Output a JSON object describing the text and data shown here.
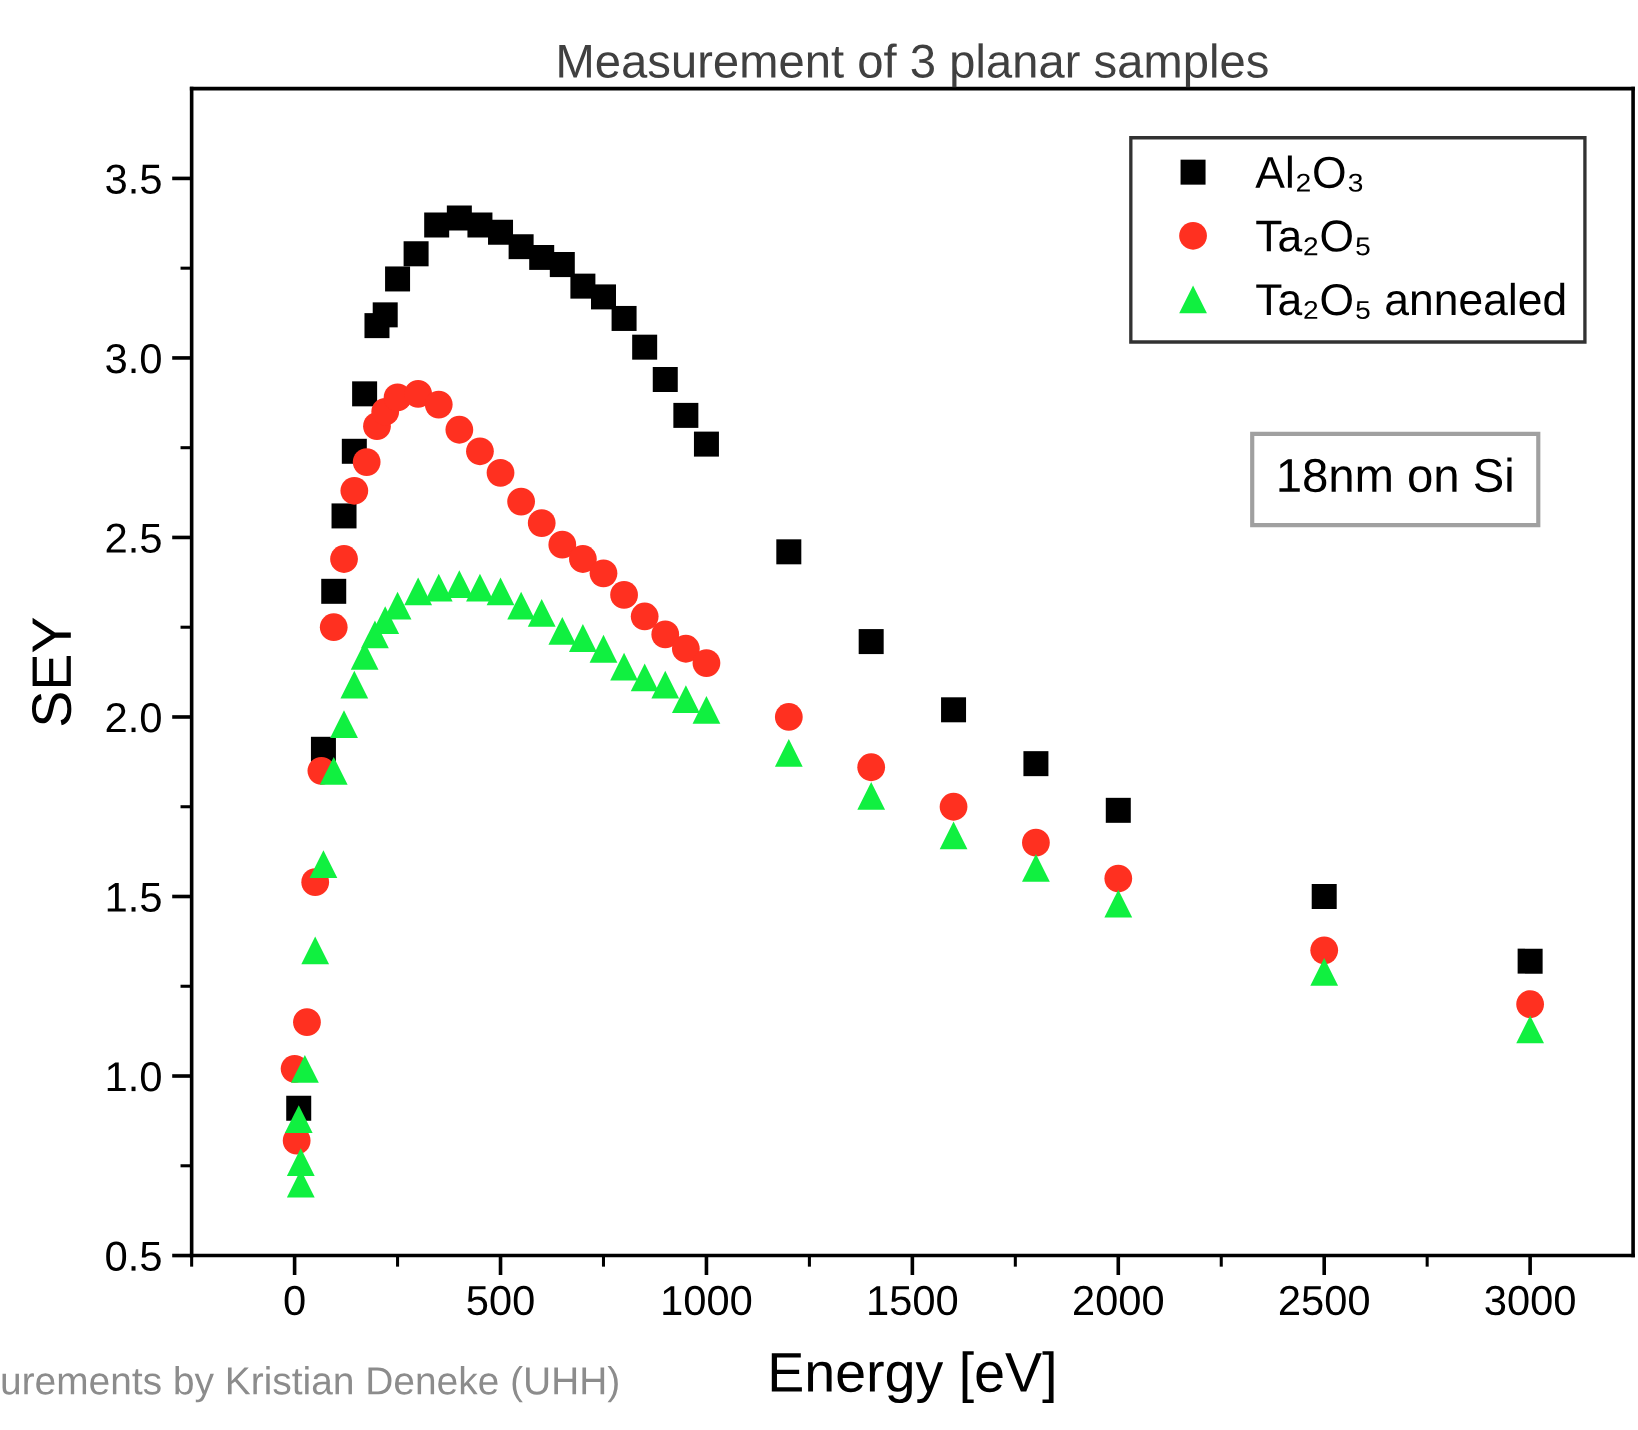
{
  "chart_data": {
    "type": "scatter",
    "title": "Measurement of 3 planar samples",
    "xlabel": "Energy [eV]",
    "ylabel": "SEY",
    "annotations": [
      "18nm on Si",
      "urements by Kristian Deneke (UHH)"
    ],
    "xlim": [
      -250,
      3250
    ],
    "ylim": [
      0.5,
      3.75
    ],
    "xticks": [
      {
        "value": -250,
        "label": null
      },
      0,
      {
        "value": 250,
        "label": null
      },
      500,
      {
        "value": 750,
        "label": null
      },
      1000,
      {
        "value": 1250,
        "label": null
      },
      1500,
      {
        "value": 1750,
        "label": null
      },
      2000,
      {
        "value": 2250,
        "label": null
      },
      2500,
      {
        "value": 2750,
        "label": null
      },
      3000
    ],
    "yticks": [
      0.5,
      {
        "value": 0.75,
        "label": null
      },
      "1.0",
      {
        "value": 1.25,
        "label": null
      },
      1.5,
      {
        "value": 1.75,
        "label": null
      },
      "2.0",
      {
        "value": 2.25,
        "label": null
      },
      2.5,
      {
        "value": 2.75,
        "label": null
      },
      "3.0",
      {
        "value": 3.25,
        "label": null
      },
      3.5
    ],
    "grid": false,
    "legend": "top right",
    "series": [
      {
        "name": "Al₂O₃",
        "color": "#000000",
        "marker": "square",
        "x": [
          10,
          70,
          95,
          120,
          145,
          170,
          200,
          220,
          250,
          295,
          345,
          400,
          450,
          500,
          550,
          600,
          650,
          700,
          750,
          800,
          850,
          900,
          950,
          1000,
          1200,
          1400,
          1600,
          1800,
          2000,
          2500,
          3000
        ],
        "values": [
          0.91,
          1.91,
          2.35,
          2.56,
          2.74,
          2.9,
          3.09,
          3.12,
          3.22,
          3.29,
          3.37,
          3.39,
          3.37,
          3.35,
          3.31,
          3.28,
          3.26,
          3.2,
          3.17,
          3.11,
          3.03,
          2.94,
          2.84,
          2.76,
          2.46,
          2.21,
          2.02,
          1.87,
          1.74,
          1.5,
          1.32
        ]
      },
      {
        "name": "Ta₂O₅",
        "color": "#ff3020",
        "marker": "circle",
        "x": [
          0,
          5,
          30,
          50,
          65,
          95,
          120,
          145,
          175,
          200,
          220,
          250,
          300,
          350,
          400,
          450,
          500,
          550,
          600,
          650,
          700,
          750,
          800,
          850,
          900,
          950,
          1000,
          1200,
          1400,
          1600,
          1800,
          2000,
          2500,
          3000
        ],
        "values": [
          1.02,
          0.82,
          1.15,
          1.54,
          1.85,
          2.25,
          2.44,
          2.63,
          2.71,
          2.81,
          2.85,
          2.89,
          2.9,
          2.87,
          2.8,
          2.74,
          2.68,
          2.6,
          2.54,
          2.48,
          2.44,
          2.4,
          2.34,
          2.28,
          2.23,
          2.19,
          2.15,
          2.0,
          1.86,
          1.75,
          1.65,
          1.55,
          1.35,
          1.2
        ]
      },
      {
        "name": "Ta₂O₅ annealed",
        "color": "#10f040",
        "marker": "triangle",
        "x": [
          10,
          15,
          15,
          25,
          50,
          70,
          95,
          120,
          145,
          170,
          195,
          220,
          250,
          300,
          350,
          400,
          450,
          500,
          550,
          600,
          650,
          700,
          750,
          800,
          850,
          900,
          950,
          1000,
          1200,
          1400,
          1600,
          1800,
          2000,
          2500,
          3000
        ],
        "values": [
          0.88,
          0.76,
          0.7,
          1.02,
          1.35,
          1.59,
          1.85,
          1.98,
          2.09,
          2.17,
          2.23,
          2.27,
          2.31,
          2.35,
          2.36,
          2.37,
          2.36,
          2.35,
          2.31,
          2.29,
          2.24,
          2.22,
          2.19,
          2.14,
          2.11,
          2.09,
          2.05,
          2.02,
          1.9,
          1.78,
          1.67,
          1.58,
          1.48,
          1.29,
          1.13
        ]
      }
    ]
  }
}
